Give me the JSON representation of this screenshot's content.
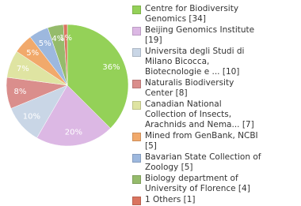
{
  "chart_data": {
    "type": "pie",
    "categories": [
      "Centre for Biodiversity Genomics [34]",
      "Beijing Genomics Institute [19]",
      "Universita degli Studi di Milano Bicocca, Biotecnologie e ... [10]",
      "Naturalis Biodiversity Center [8]",
      "Canadian National Collection of Insects, Arachnids and Nema... [7]",
      "Mined from GenBank, NCBI [5]",
      "Bavarian State Collection of Zoology [5]",
      "Biology department of University of Florence [4]",
      "1 Others [1]"
    ],
    "values": [
      36,
      20,
      10,
      8,
      7,
      5,
      5,
      4,
      1
    ],
    "value_labels": [
      "36%",
      "20%",
      "10%",
      "8%",
      "7%",
      "5%",
      "5%",
      "4%",
      "1%"
    ],
    "colors": [
      "#94d158",
      "#dcb8e4",
      "#c9d6e6",
      "#da8e8c",
      "#dfe4a2",
      "#f1a96b",
      "#9db8de",
      "#95bb6b",
      "#da745f"
    ],
    "legend": "right"
  }
}
